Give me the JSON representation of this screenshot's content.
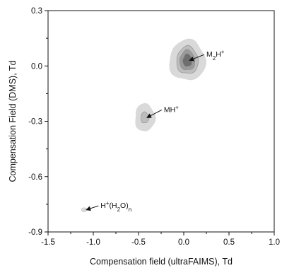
{
  "chart_data": {
    "type": "contour",
    "xlabel": "Compensation field (ultraFAIMS), Td",
    "ylabel": "Compensation Field (DMS), Td",
    "xlim": [
      -1.5,
      1.0
    ],
    "ylim": [
      -0.9,
      0.3
    ],
    "xticks": [
      "-1.5",
      "-1.0",
      "-0.5",
      "0.0",
      "0.5",
      "1.0"
    ],
    "yticks": [
      "-0.9",
      "-0.6",
      "-0.3",
      "0.0",
      "0.3"
    ],
    "grid": false,
    "colors": {
      "level1": "#d9d9d9",
      "level2": "#bdbdbd",
      "level3": "#9a9a9a",
      "level4": "#6e6e6e"
    },
    "peaks": [
      {
        "center": [
          0.04,
          0.03
        ],
        "radii_levels": [
          [
            0.2,
            0.11
          ],
          [
            0.12,
            0.075
          ],
          [
            0.085,
            0.055
          ],
          [
            0.05,
            0.035
          ]
        ],
        "levels": 4
      },
      {
        "center": [
          -0.43,
          -0.28
        ],
        "radii_levels": [
          [
            0.11,
            0.075
          ],
          [
            0.045,
            0.03
          ]
        ],
        "levels": 2
      },
      {
        "center": [
          -1.1,
          -0.78
        ],
        "radii_levels": [
          [
            0.035,
            0.012
          ]
        ],
        "levels": 1
      }
    ],
    "annotations": [
      {
        "label_main": "M",
        "label_sub": "2",
        "label_rest": "H",
        "label_sup": "+",
        "text_at": [
          0.25,
          0.05
        ],
        "arrow_to": [
          0.04,
          0.03
        ]
      },
      {
        "label_main": "MH",
        "label_sup": "+",
        "text_at": [
          -0.22,
          -0.25
        ],
        "arrow_to": [
          -0.43,
          -0.28
        ]
      },
      {
        "label_main": "H",
        "label_sup": "+",
        "label_rest": "(H",
        "label_sub": "2",
        "label_tail": "O)",
        "label_sub2": "n",
        "text_at": [
          -0.92,
          -0.77
        ],
        "arrow_to": [
          -1.1,
          -0.78
        ]
      }
    ]
  }
}
